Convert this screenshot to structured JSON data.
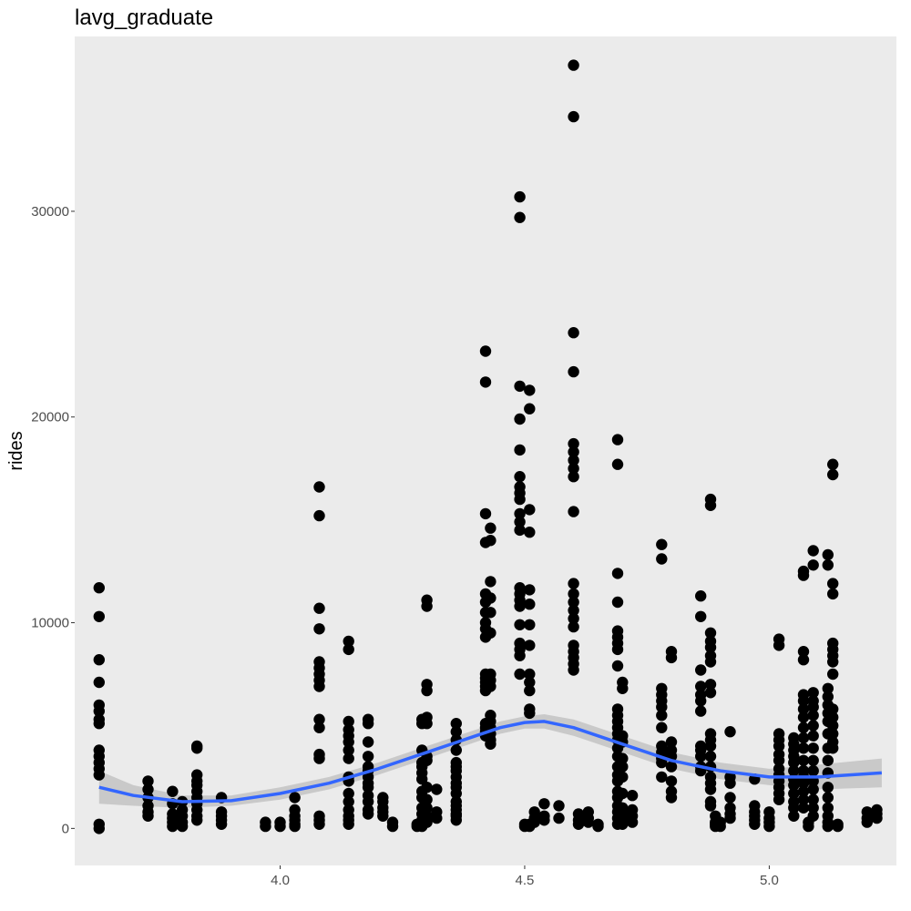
{
  "chart_data": {
    "type": "scatter",
    "title": "lavg_graduate",
    "xlabel": "",
    "ylabel": "rides",
    "xlim": [
      3.58,
      5.26
    ],
    "ylim": [
      -1800,
      38500
    ],
    "x_ticks": [
      {
        "value": 4.0,
        "label": "4.0"
      },
      {
        "value": 4.5,
        "label": "4.5"
      },
      {
        "value": 5.0,
        "label": "5.0"
      }
    ],
    "y_ticks": [
      {
        "value": 0,
        "label": "0"
      },
      {
        "value": 10000,
        "label": "10000"
      },
      {
        "value": 20000,
        "label": "20000"
      },
      {
        "value": 30000,
        "label": "30000"
      }
    ],
    "grid": false,
    "colors": {
      "panel": "#ebebeb",
      "points": "#000000",
      "smooth": "#3366ff",
      "ribbon": "#bebebe"
    },
    "points_series": [
      {
        "x": 3.63,
        "y": [
          11700,
          10300,
          8200,
          7100,
          6000,
          5700,
          5300,
          5100,
          3800,
          3500,
          3200,
          2900,
          2600,
          200,
          0
        ]
      },
      {
        "x": 3.73,
        "y": [
          2300,
          1900,
          1500,
          1100,
          800,
          600
        ]
      },
      {
        "x": 3.78,
        "y": [
          1800,
          1200,
          700,
          500,
          300,
          100
        ]
      },
      {
        "x": 3.8,
        "y": [
          1300,
          900,
          600,
          300,
          100
        ]
      },
      {
        "x": 3.83,
        "y": [
          4000,
          3900,
          2600,
          2300,
          2100,
          1800,
          1500,
          1200,
          900,
          600,
          400
        ]
      },
      {
        "x": 3.88,
        "y": [
          1500,
          800,
          600,
          400,
          200
        ]
      },
      {
        "x": 3.97,
        "y": [
          300,
          100
        ]
      },
      {
        "x": 4.0,
        "y": [
          300,
          100
        ]
      },
      {
        "x": 4.03,
        "y": [
          1500,
          900,
          600,
          400,
          200,
          100
        ]
      },
      {
        "x": 4.08,
        "y": [
          16600,
          15200,
          10700,
          9700,
          8100,
          7800,
          7500,
          7200,
          6900,
          5300,
          4900,
          3600,
          3400,
          600,
          400,
          200
        ]
      },
      {
        "x": 4.14,
        "y": [
          9100,
          8700,
          5200,
          4800,
          4500,
          4200,
          3800,
          3400,
          2500,
          2300,
          1700,
          1300,
          900,
          600,
          400,
          200
        ]
      },
      {
        "x": 4.18,
        "y": [
          5300,
          5100,
          4200,
          3500,
          3000,
          2800,
          2500,
          2200,
          2000,
          1600,
          1300,
          900,
          700
        ]
      },
      {
        "x": 4.21,
        "y": [
          1500,
          1300,
          1000,
          800,
          600
        ]
      },
      {
        "x": 4.23,
        "y": [
          300,
          100
        ]
      },
      {
        "x": 4.28,
        "y": [
          200,
          100
        ]
      },
      {
        "x": 4.29,
        "y": [
          5300,
          5100,
          3800,
          3200,
          3000,
          2700,
          2400,
          1800,
          1500,
          1000,
          700,
          400,
          100
        ]
      },
      {
        "x": 4.3,
        "y": [
          11100,
          10800,
          7000,
          6700,
          5400,
          5100,
          3500,
          3300,
          2000,
          1400,
          1000,
          600,
          300
        ]
      },
      {
        "x": 4.32,
        "y": [
          1900,
          800,
          500
        ]
      },
      {
        "x": 4.36,
        "y": [
          5100,
          4700,
          4300,
          3800,
          3200,
          3000,
          2800,
          2500,
          2200,
          2000,
          1700,
          1300,
          1100,
          900,
          700,
          600,
          400
        ]
      },
      {
        "x": 4.42,
        "y": [
          23200,
          21700,
          15300,
          13900,
          11400,
          11000,
          10500,
          10000,
          9700,
          9300,
          7500,
          7300,
          7100,
          6900,
          6700,
          5100,
          4900,
          4700,
          4500
        ]
      },
      {
        "x": 4.43,
        "y": [
          14600,
          14000,
          12000,
          11200,
          10500,
          9500,
          7500,
          7200,
          6900,
          5500,
          5200,
          4900,
          4600,
          4300,
          4100
        ]
      },
      {
        "x": 4.49,
        "y": [
          30700,
          29700,
          21500,
          19900,
          18400,
          17100,
          16600,
          16300,
          16000,
          15300,
          14900,
          14500,
          11700,
          11400,
          11100,
          10800,
          9900,
          9000,
          8700,
          8400,
          7500
        ]
      },
      {
        "x": 4.5,
        "y": [
          200,
          100
        ]
      },
      {
        "x": 4.51,
        "y": [
          21300,
          20400,
          15500,
          14400,
          11600,
          10900,
          9900,
          8900,
          7500,
          7100,
          6700,
          5800,
          5600,
          200,
          100
        ]
      },
      {
        "x": 4.52,
        "y": [
          800,
          500,
          300
        ]
      },
      {
        "x": 4.54,
        "y": [
          1200,
          600,
          400
        ]
      },
      {
        "x": 4.57,
        "y": [
          1100,
          500
        ]
      },
      {
        "x": 4.6,
        "y": [
          37100,
          34600,
          24100,
          22200,
          18700,
          18300,
          17900,
          17500,
          17100,
          15400,
          11900,
          11400,
          11000,
          10600,
          10200,
          9800,
          8900,
          8600,
          8300,
          8000,
          7700
        ]
      },
      {
        "x": 4.61,
        "y": [
          700,
          400,
          200
        ]
      },
      {
        "x": 4.63,
        "y": [
          800,
          500,
          300
        ]
      },
      {
        "x": 4.65,
        "y": [
          200,
          100
        ]
      },
      {
        "x": 4.69,
        "y": [
          18900,
          17700,
          12400,
          11000,
          9600,
          9300,
          9000,
          8700,
          7900,
          5800,
          5500,
          5200,
          4900,
          4600,
          4300,
          3900,
          3500,
          3000,
          2600,
          2300,
          1800,
          1500,
          1100,
          800,
          500,
          200
        ]
      },
      {
        "x": 4.7,
        "y": [
          7100,
          6800,
          4500,
          4200,
          3400,
          3000,
          2500,
          1700,
          1000,
          700,
          400,
          200
        ]
      },
      {
        "x": 4.72,
        "y": [
          1600,
          900,
          600,
          300
        ]
      },
      {
        "x": 4.78,
        "y": [
          13800,
          13100,
          6800,
          6500,
          6200,
          5900,
          5500,
          4900,
          4000,
          3700,
          3400,
          3200,
          2500
        ]
      },
      {
        "x": 4.8,
        "y": [
          8600,
          8300,
          4200,
          3800,
          3500,
          3000,
          2300,
          1800,
          1500
        ]
      },
      {
        "x": 4.86,
        "y": [
          11300,
          10300,
          7700,
          6900,
          6500,
          6200,
          5700,
          4000,
          3800,
          3500,
          3000,
          2800
        ]
      },
      {
        "x": 4.88,
        "y": [
          16000,
          15700,
          9500,
          9100,
          8800,
          8400,
          8100,
          7000,
          6600,
          4600,
          4300,
          4000,
          3500,
          3000,
          2500,
          2200,
          1900,
          1300,
          1100
        ]
      },
      {
        "x": 4.89,
        "y": [
          600,
          300,
          200,
          100
        ]
      },
      {
        "x": 4.9,
        "y": [
          300,
          100
        ]
      },
      {
        "x": 4.92,
        "y": [
          4700,
          2500,
          2200,
          1500,
          1000,
          700,
          500
        ]
      },
      {
        "x": 4.97,
        "y": [
          2400,
          1100,
          800,
          600,
          400,
          200
        ]
      },
      {
        "x": 5.0,
        "y": [
          800,
          500,
          300,
          100
        ]
      },
      {
        "x": 5.02,
        "y": [
          9200,
          8900,
          4600,
          4300,
          4000,
          3600,
          3300,
          2900,
          2600,
          2300,
          2000,
          1700,
          1400
        ]
      },
      {
        "x": 5.05,
        "y": [
          4400,
          4100,
          3800,
          3500,
          3200,
          2800,
          2400,
          2100,
          1700,
          1300,
          1000,
          600
        ]
      },
      {
        "x": 5.07,
        "y": [
          12500,
          12300,
          8600,
          8200,
          6500,
          6200,
          5800,
          5400,
          4900,
          4400,
          3900,
          3300,
          2800,
          2500,
          2200,
          1800,
          1400,
          1000
        ]
      },
      {
        "x": 5.08,
        "y": [
          300,
          100
        ]
      },
      {
        "x": 5.09,
        "y": [
          13500,
          12800,
          6600,
          6200,
          5900,
          5500,
          5000,
          4500,
          3900,
          3300,
          2800,
          2300,
          1900,
          1400,
          1000,
          600
        ]
      },
      {
        "x": 5.12,
        "y": [
          13300,
          12800,
          6800,
          6400,
          6000,
          5600,
          5200,
          4600,
          3900,
          3300,
          2700,
          2000,
          1500,
          1000,
          600,
          300,
          100
        ]
      },
      {
        "x": 5.13,
        "y": [
          17700,
          17200,
          11900,
          11400,
          9000,
          8700,
          8400,
          8100,
          7500,
          5800,
          5400,
          5000,
          4600,
          4200,
          3900
        ]
      },
      {
        "x": 5.14,
        "y": [
          200,
          100
        ]
      },
      {
        "x": 5.2,
        "y": [
          800,
          500,
          300
        ]
      },
      {
        "x": 5.22,
        "y": [
          900,
          700,
          500
        ]
      }
    ],
    "smooth": {
      "x": [
        3.63,
        3.7,
        3.8,
        3.9,
        4.0,
        4.1,
        4.2,
        4.3,
        4.4,
        4.45,
        4.5,
        4.54,
        4.6,
        4.7,
        4.8,
        4.9,
        5.0,
        5.1,
        5.23
      ],
      "y": [
        2000,
        1600,
        1300,
        1350,
        1700,
        2200,
        2900,
        3700,
        4500,
        4900,
        5150,
        5200,
        4900,
        4100,
        3300,
        2800,
        2500,
        2500,
        2700
      ],
      "lower": [
        1200,
        1100,
        1000,
        1100,
        1400,
        1900,
        2600,
        3400,
        4200,
        4600,
        4850,
        4850,
        4500,
        3700,
        2900,
        2400,
        2100,
        1900,
        2000
      ],
      "upper": [
        2800,
        2100,
        1600,
        1600,
        2000,
        2500,
        3200,
        4000,
        4800,
        5200,
        5450,
        5550,
        5300,
        4500,
        3700,
        3200,
        2900,
        3100,
        3400
      ]
    }
  }
}
